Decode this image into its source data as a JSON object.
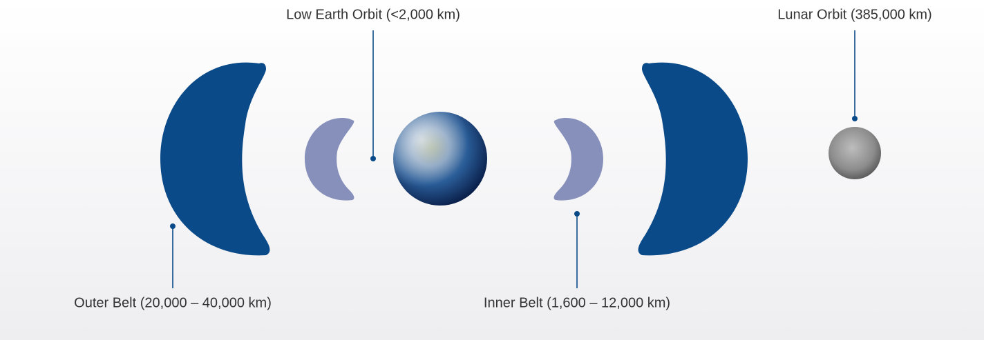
{
  "labels": {
    "low_earth_orbit": "Low Earth Orbit (<2,000 km)",
    "lunar_orbit": "Lunar Orbit (385,000 km)",
    "outer_belt": "Outer Belt (20,000 – 40,000 km)",
    "inner_belt": "Inner Belt (1,600 – 12,000 km)"
  }
}
